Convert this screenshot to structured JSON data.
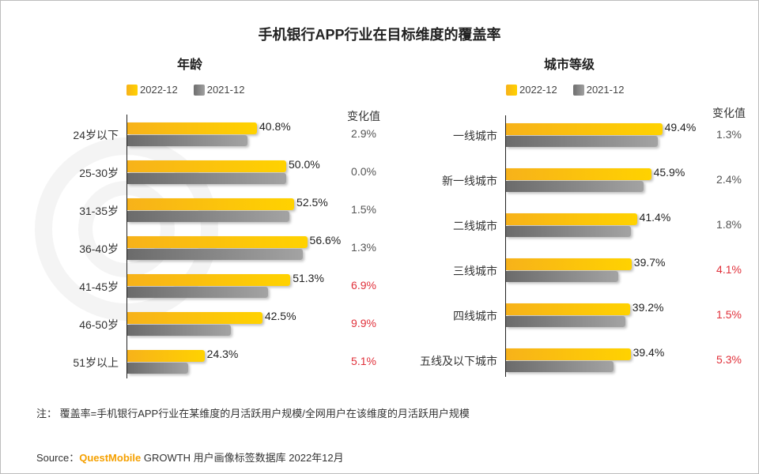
{
  "title": "手机银行APP行业在目标维度的覆盖率",
  "colors": {
    "series_2022": "#ffc20e",
    "series_2021": "#8a8a8a",
    "increase_highlight": "#e0303a",
    "brand": "#f5a000"
  },
  "change_header": "变化值",
  "chart_data": [
    {
      "type": "bar",
      "orientation": "horizontal",
      "title": "年龄",
      "categories": [
        "24岁以下",
        "25-30岁",
        "31-35岁",
        "36-40岁",
        "41-45岁",
        "46-50岁",
        "51岁以上"
      ],
      "series": [
        {
          "name": "2022-12",
          "values": [
            40.8,
            50.0,
            52.5,
            56.6,
            51.3,
            42.5,
            24.3
          ],
          "labels": [
            "40.8%",
            "50.0%",
            "52.5%",
            "56.6%",
            "51.3%",
            "42.5%",
            "24.3%"
          ]
        },
        {
          "name": "2021-12",
          "values": [
            37.9,
            50.0,
            51.0,
            55.3,
            44.4,
            32.6,
            19.2
          ]
        }
      ],
      "change": [
        "2.9%",
        "0.0%",
        "1.5%",
        "1.3%",
        "6.9%",
        "9.9%",
        "5.1%"
      ],
      "change_highlight": [
        false,
        false,
        false,
        false,
        true,
        true,
        true
      ],
      "unit": "%",
      "legend": "top"
    },
    {
      "type": "bar",
      "orientation": "horizontal",
      "title": "城市等级",
      "categories": [
        "一线城市",
        "新一线城市",
        "二线城市",
        "三线城市",
        "四线城市",
        "五线及以下城市"
      ],
      "series": [
        {
          "name": "2022-12",
          "values": [
            49.4,
            45.9,
            41.4,
            39.7,
            39.2,
            39.4
          ],
          "labels": [
            "49.4%",
            "45.9%",
            "41.4%",
            "39.7%",
            "39.2%",
            "39.4%"
          ]
        },
        {
          "name": "2021-12",
          "values": [
            48.1,
            43.5,
            39.6,
            35.6,
            37.7,
            34.1
          ]
        }
      ],
      "change": [
        "1.3%",
        "2.4%",
        "1.8%",
        "4.1%",
        "1.5%",
        "5.3%"
      ],
      "change_highlight": [
        false,
        false,
        false,
        true,
        true,
        true
      ],
      "unit": "%",
      "legend": "top"
    }
  ],
  "note": "注：  覆盖率=手机银行APP行业在某维度的月活跃用户规模/全网用户在该维度的月活跃用户规模",
  "source": {
    "prefix": "Source：",
    "brand": "QuestMobile",
    "text": " GROWTH 用户画像标签数据库 2022年12月"
  },
  "watermark": "QUESTMOBILE"
}
